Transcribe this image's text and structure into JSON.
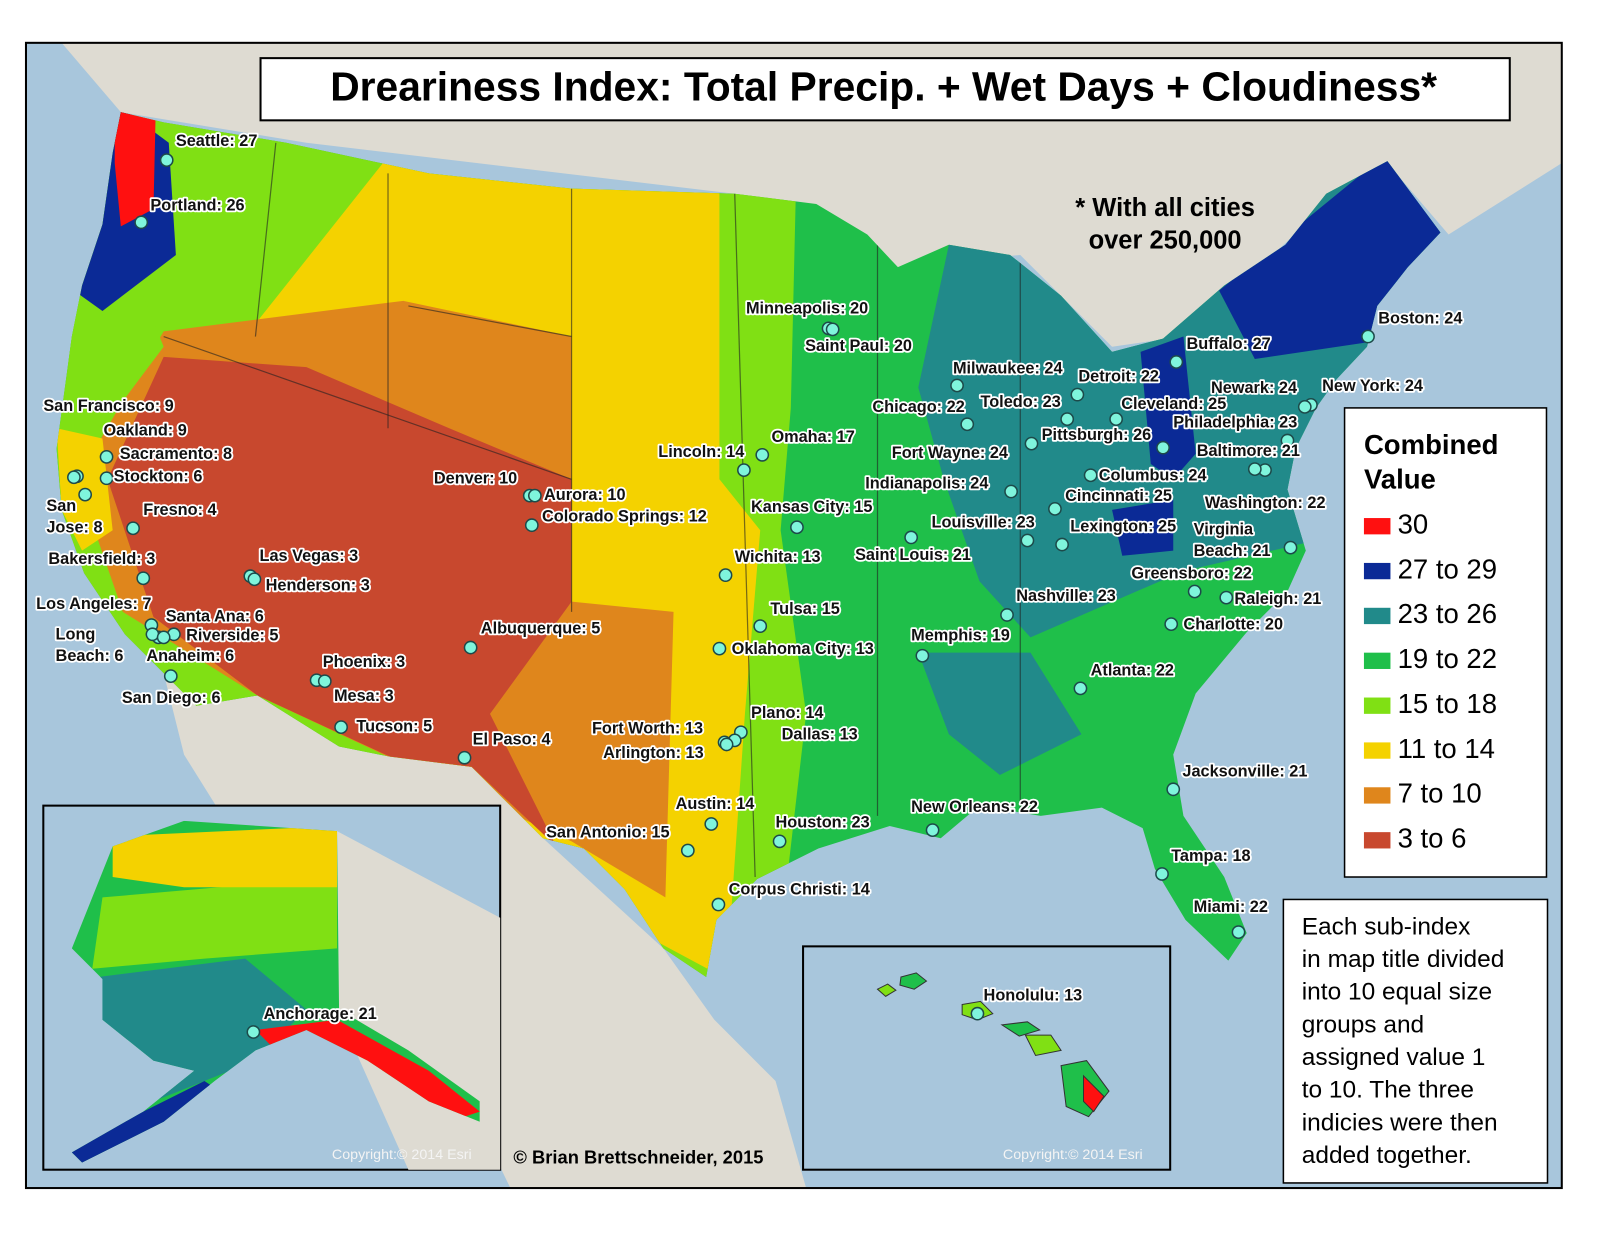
{
  "title": "Dreariness Index: Total Precip. + Wet Days + Cloudiness*",
  "note": [
    "* With all cities",
    "over 250,000"
  ],
  "legend": {
    "title": [
      "Combined",
      "Value"
    ],
    "items": [
      {
        "label": "30",
        "color": "#ff1010"
      },
      {
        "label": "27 to 29",
        "color": "#0b2a96"
      },
      {
        "label": "23 to 26",
        "color": "#218a8a"
      },
      {
        "label": "19 to 22",
        "color": "#1fbf4a"
      },
      {
        "label": "15 to 18",
        "color": "#80e014"
      },
      {
        "label": "11 to 14",
        "color": "#f4d200"
      },
      {
        "label": "7 to 10",
        "color": "#df861c"
      },
      {
        "label": "3 to 6",
        "color": "#c8482e"
      }
    ]
  },
  "explanation": [
    "Each sub-index",
    "in map title divided",
    "into 10 equal size",
    "groups and",
    "assigned value 1",
    "to 10. The three",
    "indicies were then",
    "added together."
  ],
  "credit": "© Brian Brettschneider, 2015",
  "basemap_credit": "Copyright:© 2014 Esri",
  "cities": [
    [
      "Seattle: 27"
    ],
    [
      "Portland: 26"
    ],
    [
      "San Francisco: 9"
    ],
    [
      "Oakland: 9"
    ],
    [
      "Sacramento: 8"
    ],
    [
      "Stockton: 6"
    ],
    [
      "San",
      "Jose: 8"
    ],
    [
      "Fresno: 4"
    ],
    [
      "Bakersfield: 3"
    ],
    [
      "Los Angeles: 7"
    ],
    [
      "Long",
      "Beach: 6"
    ],
    [
      "Santa Ana: 6"
    ],
    [
      "Riverside: 5"
    ],
    [
      "Anaheim: 6"
    ],
    [
      "San Diego: 6"
    ],
    [
      "Las Vegas: 3"
    ],
    [
      "Henderson: 3"
    ],
    [
      "Phoenix: 3"
    ],
    [
      "Mesa: 3"
    ],
    [
      "Tucson: 5"
    ],
    [
      "Albuquerque: 5"
    ],
    [
      "El Paso: 4"
    ],
    [
      "Denver: 10"
    ],
    [
      "Aurora: 10"
    ],
    [
      "Colorado Springs: 12"
    ],
    [
      "Lincoln: 14"
    ],
    [
      "Omaha: 17"
    ],
    [
      "Minneapolis: 20"
    ],
    [
      "Saint Paul: 20"
    ],
    [
      "Kansas City: 15"
    ],
    [
      "Wichita: 13"
    ],
    [
      "Tulsa: 15"
    ],
    [
      "Oklahoma City: 13"
    ],
    [
      "Plano: 14"
    ],
    [
      "Dallas: 13"
    ],
    [
      "Fort Worth: 13"
    ],
    [
      "Arlington: 13"
    ],
    [
      "Austin: 14"
    ],
    [
      "San Antonio: 15"
    ],
    [
      "Houston: 23"
    ],
    [
      "Corpus Christi: 14"
    ],
    [
      "Saint Louis: 21"
    ],
    [
      "Memphis: 19"
    ],
    [
      "New Orleans: 22"
    ],
    [
      "Chicago: 22"
    ],
    [
      "Milwaukee: 24"
    ],
    [
      "Detroit: 22"
    ],
    [
      "Toledo: 23"
    ],
    [
      "Fort Wayne: 24"
    ],
    [
      "Indianapolis: 24"
    ],
    [
      "Louisville: 23"
    ],
    [
      "Cincinnati: 25"
    ],
    [
      "Columbus: 24"
    ],
    [
      "Lexington: 25"
    ],
    [
      "Nashville: 23"
    ],
    [
      "Atlanta: 22"
    ],
    [
      "Pittsburgh: 26"
    ],
    [
      "Cleveland: 25"
    ],
    [
      "Buffalo: 27"
    ],
    [
      "Boston: 24"
    ],
    [
      "New York: 24"
    ],
    [
      "Newark: 24"
    ],
    [
      "Philadelphia: 23"
    ],
    [
      "Baltimore: 21"
    ],
    [
      "Washington: 22"
    ],
    [
      "Virginia",
      "Beach: 21"
    ],
    [
      "Greensboro: 22"
    ],
    [
      "Raleigh: 21"
    ],
    [
      "Charlotte: 20"
    ],
    [
      "Jacksonville: 21"
    ],
    [
      "Tampa: 18"
    ],
    [
      "Miami: 22"
    ],
    [
      "Anchorage: 21"
    ],
    [
      "Honolulu: 13"
    ]
  ]
}
